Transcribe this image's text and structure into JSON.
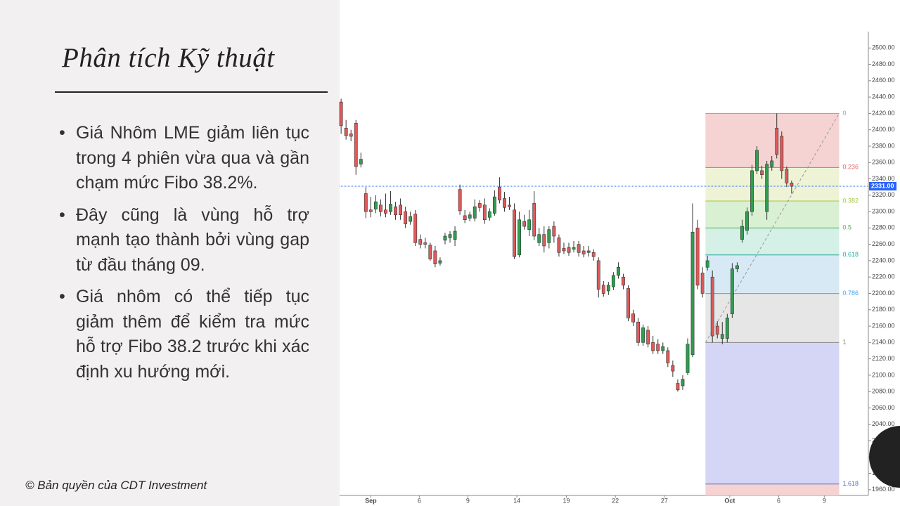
{
  "slide": {
    "title": "Phân tích Kỹ thuật",
    "bullets": [
      "Giá Nhôm LME giảm liên tục trong 4 phiên vừa qua và gần chạm mức Fibo 38.2%.",
      "Đây cũng là vùng hỗ trợ mạnh tạo thành bởi vùng gap từ đầu tháng 09.",
      "Giá nhôm có thể tiếp tục giảm thêm để kiểm tra mức hỗ trợ Fibo 38.2 trước khi xác định xu hướng mới."
    ],
    "footer": "© Bản quyền của CDT Investment"
  },
  "chart_data": {
    "type": "candlestick",
    "up_color": "#2e9e4f",
    "down_color": "#e0595a",
    "open": [
      2434,
      2402,
      2395,
      2408,
      2358,
      2322,
      2302,
      2303,
      2308,
      2302,
      2300,
      2306,
      2308,
      2300,
      2288,
      2297,
      2266,
      2262,
      2259,
      2252,
      2237,
      2265,
      2268,
      2266,
      2327,
      2295,
      2292,
      2292,
      2310,
      2308,
      2293,
      2298,
      2330,
      2316,
      2308,
      2302,
      2247,
      2288,
      2278,
      2310,
      2262,
      2272,
      2262,
      2282,
      2268,
      2255,
      2256,
      2254,
      2260,
      2252,
      2250,
      2250,
      2240,
      2210,
      2203,
      2208,
      2222,
      2220,
      2206,
      2175,
      2165,
      2140,
      2155,
      2140,
      2138,
      2130,
      2130,
      2112,
      2090,
      2087,
      2103,
      2125,
      2280,
      2225,
      2232,
      2220,
      2160,
      2145,
      2145,
      2175,
      2230,
      2266,
      2277,
      2300,
      2350,
      2350,
      2300,
      2355,
      2402,
      2392,
      2352,
      2335
    ],
    "high": [
      2438,
      2412,
      2400,
      2412,
      2372,
      2330,
      2318,
      2320,
      2315,
      2322,
      2325,
      2312,
      2316,
      2306,
      2300,
      2302,
      2272,
      2268,
      2262,
      2258,
      2244,
      2274,
      2276,
      2282,
      2333,
      2302,
      2300,
      2315,
      2314,
      2316,
      2304,
      2326,
      2342,
      2324,
      2318,
      2310,
      2300,
      2296,
      2302,
      2325,
      2280,
      2282,
      2282,
      2288,
      2272,
      2262,
      2262,
      2264,
      2264,
      2258,
      2258,
      2254,
      2244,
      2215,
      2214,
      2226,
      2238,
      2224,
      2210,
      2180,
      2170,
      2162,
      2160,
      2148,
      2144,
      2140,
      2134,
      2118,
      2095,
      2100,
      2145,
      2310,
      2290,
      2232,
      2246,
      2228,
      2166,
      2165,
      2175,
      2237,
      2238,
      2290,
      2305,
      2357,
      2380,
      2356,
      2362,
      2368,
      2420,
      2398,
      2355,
      2338
    ],
    "low": [
      2395,
      2388,
      2386,
      2345,
      2354,
      2292,
      2293,
      2298,
      2294,
      2293,
      2296,
      2290,
      2290,
      2280,
      2284,
      2258,
      2255,
      2255,
      2240,
      2232,
      2234,
      2260,
      2262,
      2258,
      2296,
      2286,
      2288,
      2288,
      2300,
      2285,
      2289,
      2295,
      2310,
      2300,
      2302,
      2242,
      2244,
      2278,
      2270,
      2265,
      2258,
      2250,
      2255,
      2262,
      2245,
      2248,
      2246,
      2250,
      2245,
      2244,
      2245,
      2240,
      2195,
      2196,
      2198,
      2204,
      2218,
      2205,
      2166,
      2160,
      2136,
      2136,
      2134,
      2126,
      2126,
      2126,
      2110,
      2098,
      2080,
      2082,
      2100,
      2122,
      2205,
      2195,
      2228,
      2140,
      2145,
      2138,
      2140,
      2170,
      2226,
      2262,
      2272,
      2295,
      2346,
      2340,
      2290,
      2350,
      2365,
      2340,
      2330,
      2322
    ],
    "close": [
      2405,
      2393,
      2392,
      2355,
      2364,
      2300,
      2300,
      2312,
      2300,
      2298,
      2309,
      2296,
      2296,
      2285,
      2294,
      2262,
      2260,
      2260,
      2242,
      2236,
      2240,
      2270,
      2272,
      2276,
      2301,
      2290,
      2296,
      2306,
      2305,
      2290,
      2300,
      2318,
      2314,
      2305,
      2306,
      2245,
      2290,
      2282,
      2290,
      2270,
      2272,
      2258,
      2278,
      2270,
      2250,
      2252,
      2250,
      2256,
      2250,
      2248,
      2252,
      2245,
      2205,
      2200,
      2210,
      2222,
      2232,
      2210,
      2170,
      2165,
      2140,
      2158,
      2138,
      2130,
      2130,
      2135,
      2115,
      2105,
      2082,
      2095,
      2138,
      2275,
      2210,
      2200,
      2240,
      2148,
      2150,
      2150,
      2170,
      2230,
      2234,
      2282,
      2300,
      2350,
      2375,
      2345,
      2358,
      2362,
      2370,
      2350,
      2335,
      2331
    ],
    "xlim": [
      -0.3,
      106.5
    ],
    "xticks": [
      {
        "value": 6,
        "label": "Sep"
      },
      {
        "value": 15.8,
        "label": "6"
      },
      {
        "value": 25.6,
        "label": "9"
      },
      {
        "value": 35.5,
        "label": "14"
      },
      {
        "value": 45.5,
        "label": "19"
      },
      {
        "value": 55.4,
        "label": "22"
      },
      {
        "value": 65.3,
        "label": "27"
      },
      {
        "value": 78.5,
        "label": "Oct"
      },
      {
        "value": 88.4,
        "label": "6"
      },
      {
        "value": 97.6,
        "label": "9"
      }
    ],
    "ylim": [
      1953,
      2520
    ],
    "yticks": [
      {
        "value": 1960,
        "label": "1960.00"
      },
      {
        "value": 1980,
        "label": "1980.00"
      },
      {
        "value": 2000,
        "label": "2000.00"
      },
      {
        "value": 2020,
        "label": "2020.00"
      },
      {
        "value": 2040,
        "label": "2040.00"
      },
      {
        "value": 2060,
        "label": "2060.00"
      },
      {
        "value": 2080,
        "label": "2080.00"
      },
      {
        "value": 2100,
        "label": "2100.00"
      },
      {
        "value": 2120,
        "label": "2120.00"
      },
      {
        "value": 2140,
        "label": "2140.00"
      },
      {
        "value": 2160,
        "label": "2160.00"
      },
      {
        "value": 2180,
        "label": "2180.00"
      },
      {
        "value": 2200,
        "label": "2200.00"
      },
      {
        "value": 2220,
        "label": "2220.00"
      },
      {
        "value": 2240,
        "label": "2240.00"
      },
      {
        "value": 2260,
        "label": "2260.00"
      },
      {
        "value": 2280,
        "label": "2280.00"
      },
      {
        "value": 2300,
        "label": "2300.00"
      },
      {
        "value": 2320,
        "label": "2320.00"
      },
      {
        "value": 2340,
        "label": "2340.00"
      },
      {
        "value": 2360,
        "label": "2360.00"
      },
      {
        "value": 2380,
        "label": "2380.00"
      },
      {
        "value": 2400,
        "label": "2400.00"
      },
      {
        "value": 2420,
        "label": "2420.00"
      },
      {
        "value": 2440,
        "label": "2440.00"
      },
      {
        "value": 2460,
        "label": "2460.00"
      },
      {
        "value": 2480,
        "label": "2480.00"
      },
      {
        "value": 2500,
        "label": "2500.00"
      }
    ],
    "last_price": {
      "value": 2331,
      "label": "2331.00",
      "color": "#2962ff"
    },
    "fib_x": [
      73.6,
      100.6
    ],
    "fib_levels": [
      {
        "level": 0,
        "price": 2420,
        "color": "#9e9e9e",
        "zone_color": "#f5d3d3"
      },
      {
        "level": 0.236,
        "price": 2353.9,
        "color": "#e06666",
        "zone_color": "#eef3d6"
      },
      {
        "level": 0.382,
        "price": 2313,
        "color": "#a6c84a",
        "zone_color": "#d9f0d3"
      },
      {
        "level": 0.5,
        "price": 2280,
        "color": "#4caf50",
        "zone_color": "#d5f0e6"
      },
      {
        "level": 0.618,
        "price": 2247,
        "color": "#26a69a",
        "zone_color": "#d7e9f5"
      },
      {
        "level": 0.786,
        "price": 2199.9,
        "color": "#42a5f5",
        "zone_color": "#e6e6e6"
      },
      {
        "level": 1,
        "price": 2140,
        "color": "#888888",
        "zone_color": "#d5d5f5"
      },
      {
        "level": 1.618,
        "price": 1966.96,
        "color": "#5c6bc0",
        "zone_color": "#f5d3d3"
      }
    ]
  }
}
